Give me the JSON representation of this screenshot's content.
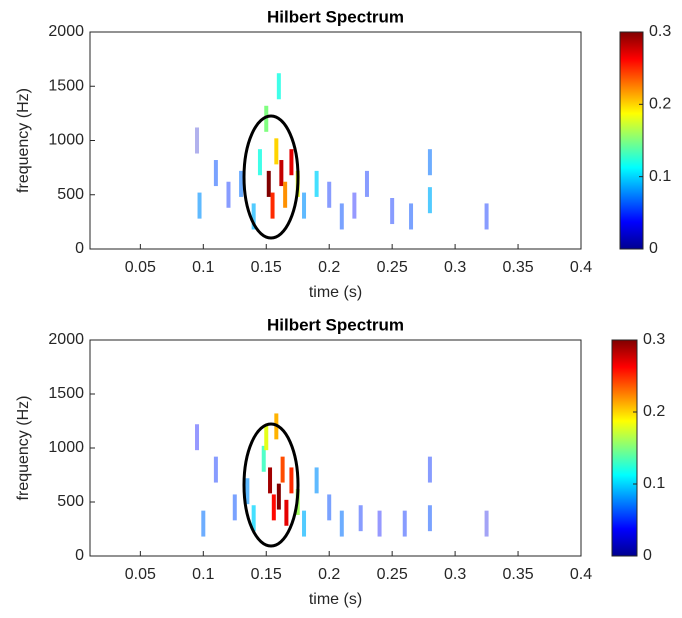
{
  "chart_data": [
    {
      "type": "heatmap",
      "title": "Hilbert Spectrum",
      "xlabel": "time (s)",
      "ylabel": "frequency (Hz)",
      "xlim": [
        0.01,
        0.4
      ],
      "xticks": [
        0.05,
        0.1,
        0.15,
        0.2,
        0.25,
        0.3,
        0.35,
        0.4
      ],
      "ylim": [
        0,
        2000
      ],
      "yticks": [
        0,
        500,
        1000,
        1500,
        2000
      ],
      "clim": [
        0,
        0.3
      ],
      "cticks": [
        0,
        0.1,
        0.2,
        0.3
      ],
      "x": [
        0.095,
        0.097,
        0.11,
        0.12,
        0.13,
        0.14,
        0.145,
        0.15,
        0.152,
        0.155,
        0.158,
        0.16,
        0.162,
        0.165,
        0.17,
        0.175,
        0.18,
        0.19,
        0.2,
        0.21,
        0.22,
        0.23,
        0.25,
        0.265,
        0.28,
        0.28,
        0.325
      ],
      "y": [
        1000,
        400,
        700,
        500,
        600,
        300,
        800,
        1200,
        600,
        400,
        900,
        1500,
        700,
        500,
        800,
        600,
        400,
        600,
        500,
        300,
        400,
        600,
        350,
        300,
        450,
        800,
        300
      ],
      "values": [
        0.02,
        0.08,
        0.06,
        0.05,
        0.07,
        0.09,
        0.12,
        0.15,
        0.3,
        0.25,
        0.2,
        0.12,
        0.28,
        0.22,
        0.27,
        0.18,
        0.08,
        0.1,
        0.05,
        0.06,
        0.04,
        0.05,
        0.05,
        0.06,
        0.09,
        0.07,
        0.05
      ]
    },
    {
      "type": "heatmap",
      "title": "Hilbert Spectrum",
      "xlabel": "time (s)",
      "ylabel": "frequency (Hz)",
      "xlim": [
        0.01,
        0.4
      ],
      "xticks": [
        0.05,
        0.1,
        0.15,
        0.2,
        0.25,
        0.3,
        0.35,
        0.4
      ],
      "ylim": [
        0,
        2000
      ],
      "yticks": [
        0,
        500,
        1000,
        1500,
        2000
      ],
      "clim": [
        0,
        0.3
      ],
      "cticks": [
        0,
        0.1,
        0.2,
        0.3
      ],
      "x": [
        0.095,
        0.1,
        0.11,
        0.125,
        0.135,
        0.14,
        0.148,
        0.15,
        0.153,
        0.156,
        0.158,
        0.16,
        0.163,
        0.166,
        0.17,
        0.175,
        0.18,
        0.19,
        0.2,
        0.21,
        0.225,
        0.24,
        0.26,
        0.28,
        0.28,
        0.325
      ],
      "y": [
        1100,
        300,
        800,
        450,
        600,
        350,
        900,
        1100,
        700,
        450,
        1200,
        550,
        800,
        400,
        700,
        500,
        300,
        700,
        450,
        300,
        350,
        300,
        300,
        350,
        800,
        300
      ],
      "values": [
        0.04,
        0.07,
        0.05,
        0.06,
        0.08,
        0.1,
        0.13,
        0.18,
        0.29,
        0.26,
        0.21,
        0.3,
        0.24,
        0.27,
        0.25,
        0.16,
        0.09,
        0.08,
        0.06,
        0.07,
        0.05,
        0.04,
        0.05,
        0.06,
        0.05,
        0.03
      ]
    }
  ]
}
